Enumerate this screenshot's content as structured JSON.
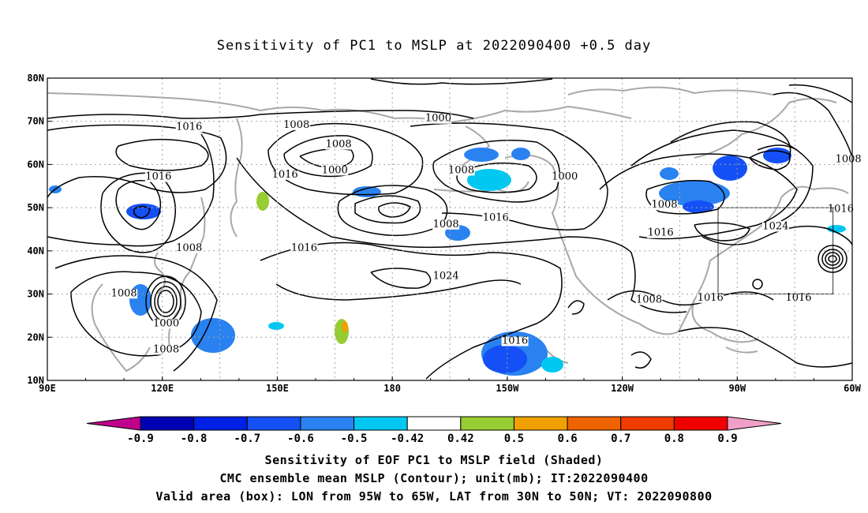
{
  "title": "Sensitivity of PC1 to MSLP at 2022090400 +0.5 day",
  "lon_labels": [
    "90E",
    "120E",
    "150E",
    "180",
    "150W",
    "120W",
    "90W",
    "60W"
  ],
  "lat_labels": [
    "80N",
    "70N",
    "60N",
    "50N",
    "40N",
    "30N",
    "20N",
    "10N"
  ],
  "contour_labels": [
    {
      "text": "1016",
      "lon": 127,
      "lat": 68
    },
    {
      "text": "1008",
      "lon": 155,
      "lat": 68.5
    },
    {
      "text": "1000",
      "lon": 192,
      "lat": 70
    },
    {
      "text": "1008",
      "lon": 166,
      "lat": 64
    },
    {
      "text": "1000",
      "lon": 165,
      "lat": 58
    },
    {
      "text": "1008",
      "lon": 198,
      "lat": 58
    },
    {
      "text": "1000",
      "lon": 225,
      "lat": 56.5
    },
    {
      "text": "1016",
      "lon": 119,
      "lat": 56.5
    },
    {
      "text": "1016",
      "lon": 152,
      "lat": 57
    },
    {
      "text": "1008",
      "lon": 194,
      "lat": 45.5
    },
    {
      "text": "1016",
      "lon": 207,
      "lat": 47
    },
    {
      "text": "1008",
      "lon": 251,
      "lat": 50
    },
    {
      "text": "1016",
      "lon": 250,
      "lat": 43.5
    },
    {
      "text": "1024",
      "lon": 280,
      "lat": 45
    },
    {
      "text": "1016",
      "lon": 297,
      "lat": 49
    },
    {
      "text": "1008",
      "lon": 299,
      "lat": 60.5
    },
    {
      "text": "1008",
      "lon": 127,
      "lat": 40
    },
    {
      "text": "1016",
      "lon": 157,
      "lat": 40
    },
    {
      "text": "1024",
      "lon": 194,
      "lat": 33.5
    },
    {
      "text": "1008",
      "lon": 110,
      "lat": 29.5
    },
    {
      "text": "1000",
      "lon": 121,
      "lat": 22.5
    },
    {
      "text": "1008",
      "lon": 121,
      "lat": 16.5
    },
    {
      "text": "1016",
      "lon": 212,
      "lat": 18.5
    },
    {
      "text": "1008",
      "lon": 247,
      "lat": 28
    },
    {
      "text": "1016",
      "lon": 263,
      "lat": 28.5
    },
    {
      "text": "1016",
      "lon": 286,
      "lat": 28.5
    }
  ],
  "valid_box": {
    "lon_min": -95,
    "lon_max": -65,
    "lat_min": 30,
    "lat_max": 50
  },
  "colorbar": {
    "labels": [
      "-0.9",
      "-0.8",
      "-0.7",
      "-0.6",
      "-0.5",
      "-0.42",
      "0.42",
      "0.5",
      "0.6",
      "0.7",
      "0.8",
      "0.9"
    ],
    "colors": [
      "#c0008c",
      "#0000b4",
      "#0020e6",
      "#1450f5",
      "#2a82f0",
      "#00c8f0",
      "#ffffff",
      "#96cd32",
      "#f0a000",
      "#f06400",
      "#f03c00",
      "#f00000",
      "#f0a0c8"
    ]
  },
  "footer": {
    "line1": "Sensitivity of EOF PC1 to MSLP field (Shaded)",
    "line2": "CMC ensemble mean MSLP (Contour); unit(mb); IT:2022090400",
    "line3": "Valid area (box): LON from 95W to 65W, LAT from 30N to 50N; VT: 2022090800"
  }
}
